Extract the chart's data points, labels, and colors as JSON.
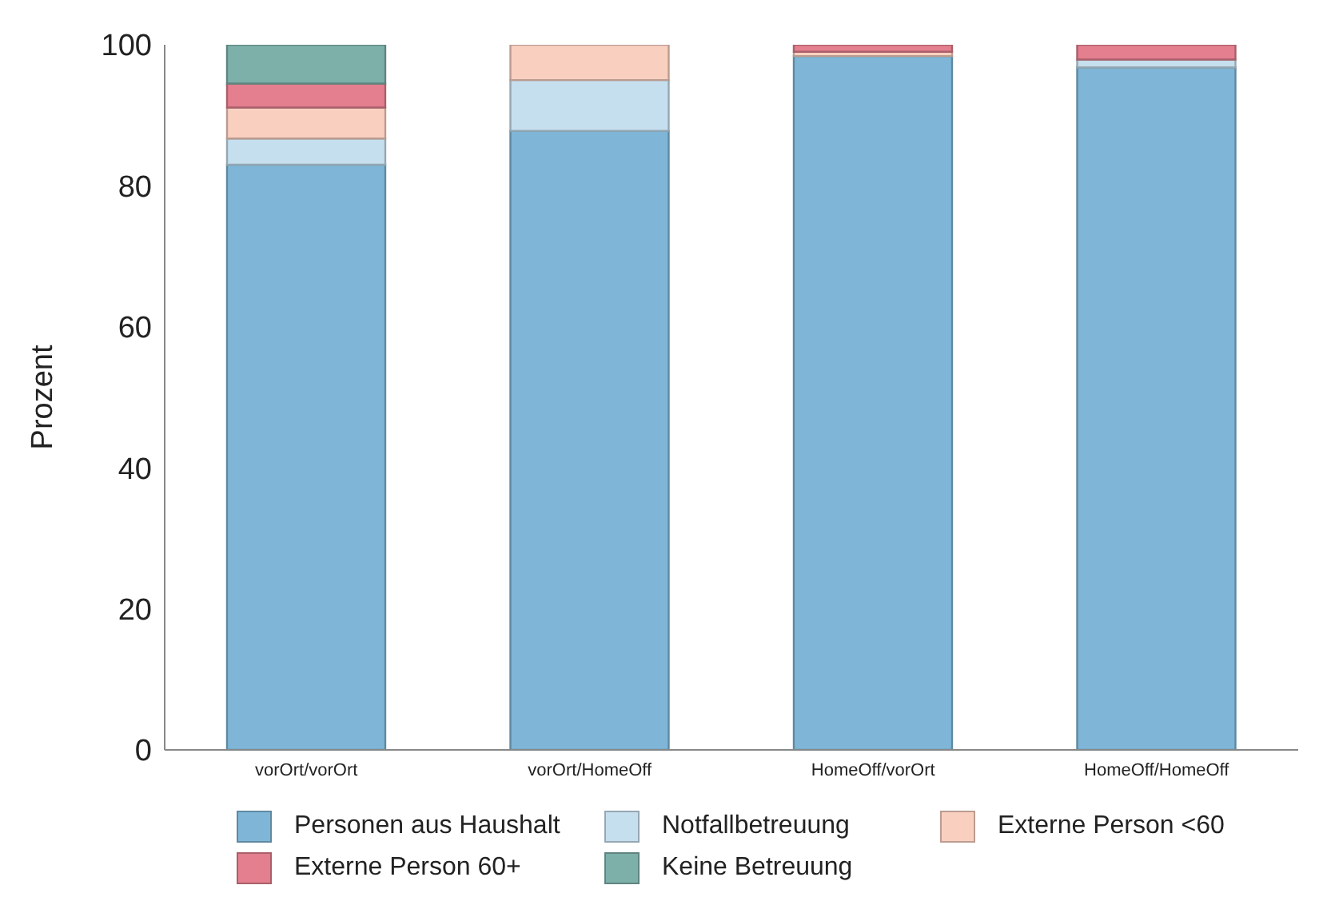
{
  "chart_data": {
    "type": "bar",
    "stacked": true,
    "ylabel": "Prozent",
    "categories": [
      "vorOrt/vorOrt",
      "vorOrt/HomeOff",
      "HomeOff/vorOrt",
      "HomeOff/HomeOff"
    ],
    "series": [
      {
        "name": "Personen aus Haushalt",
        "color": "#7fb6d7",
        "values": [
          83.0,
          87.8,
          98.4,
          96.8
        ]
      },
      {
        "name": "Notfallbetreuung",
        "color": "#c6dfee",
        "values": [
          3.7,
          7.2,
          0,
          1.1
        ]
      },
      {
        "name": "Externe Person <60",
        "color": "#f9d0c0",
        "values": [
          4.4,
          5.0,
          0.6,
          0
        ]
      },
      {
        "name": "Externe Person 60+",
        "color": "#e37f8e",
        "values": [
          3.4,
          0,
          1.0,
          2.1
        ]
      },
      {
        "name": "Keine Betreuung",
        "color": "#7eb0aa",
        "values": [
          5.5,
          0,
          0,
          0
        ]
      }
    ],
    "ylim": [
      0,
      100
    ],
    "yticks": [
      0,
      20,
      40,
      60,
      80,
      100
    ],
    "grid": false,
    "legend": "bottom"
  }
}
